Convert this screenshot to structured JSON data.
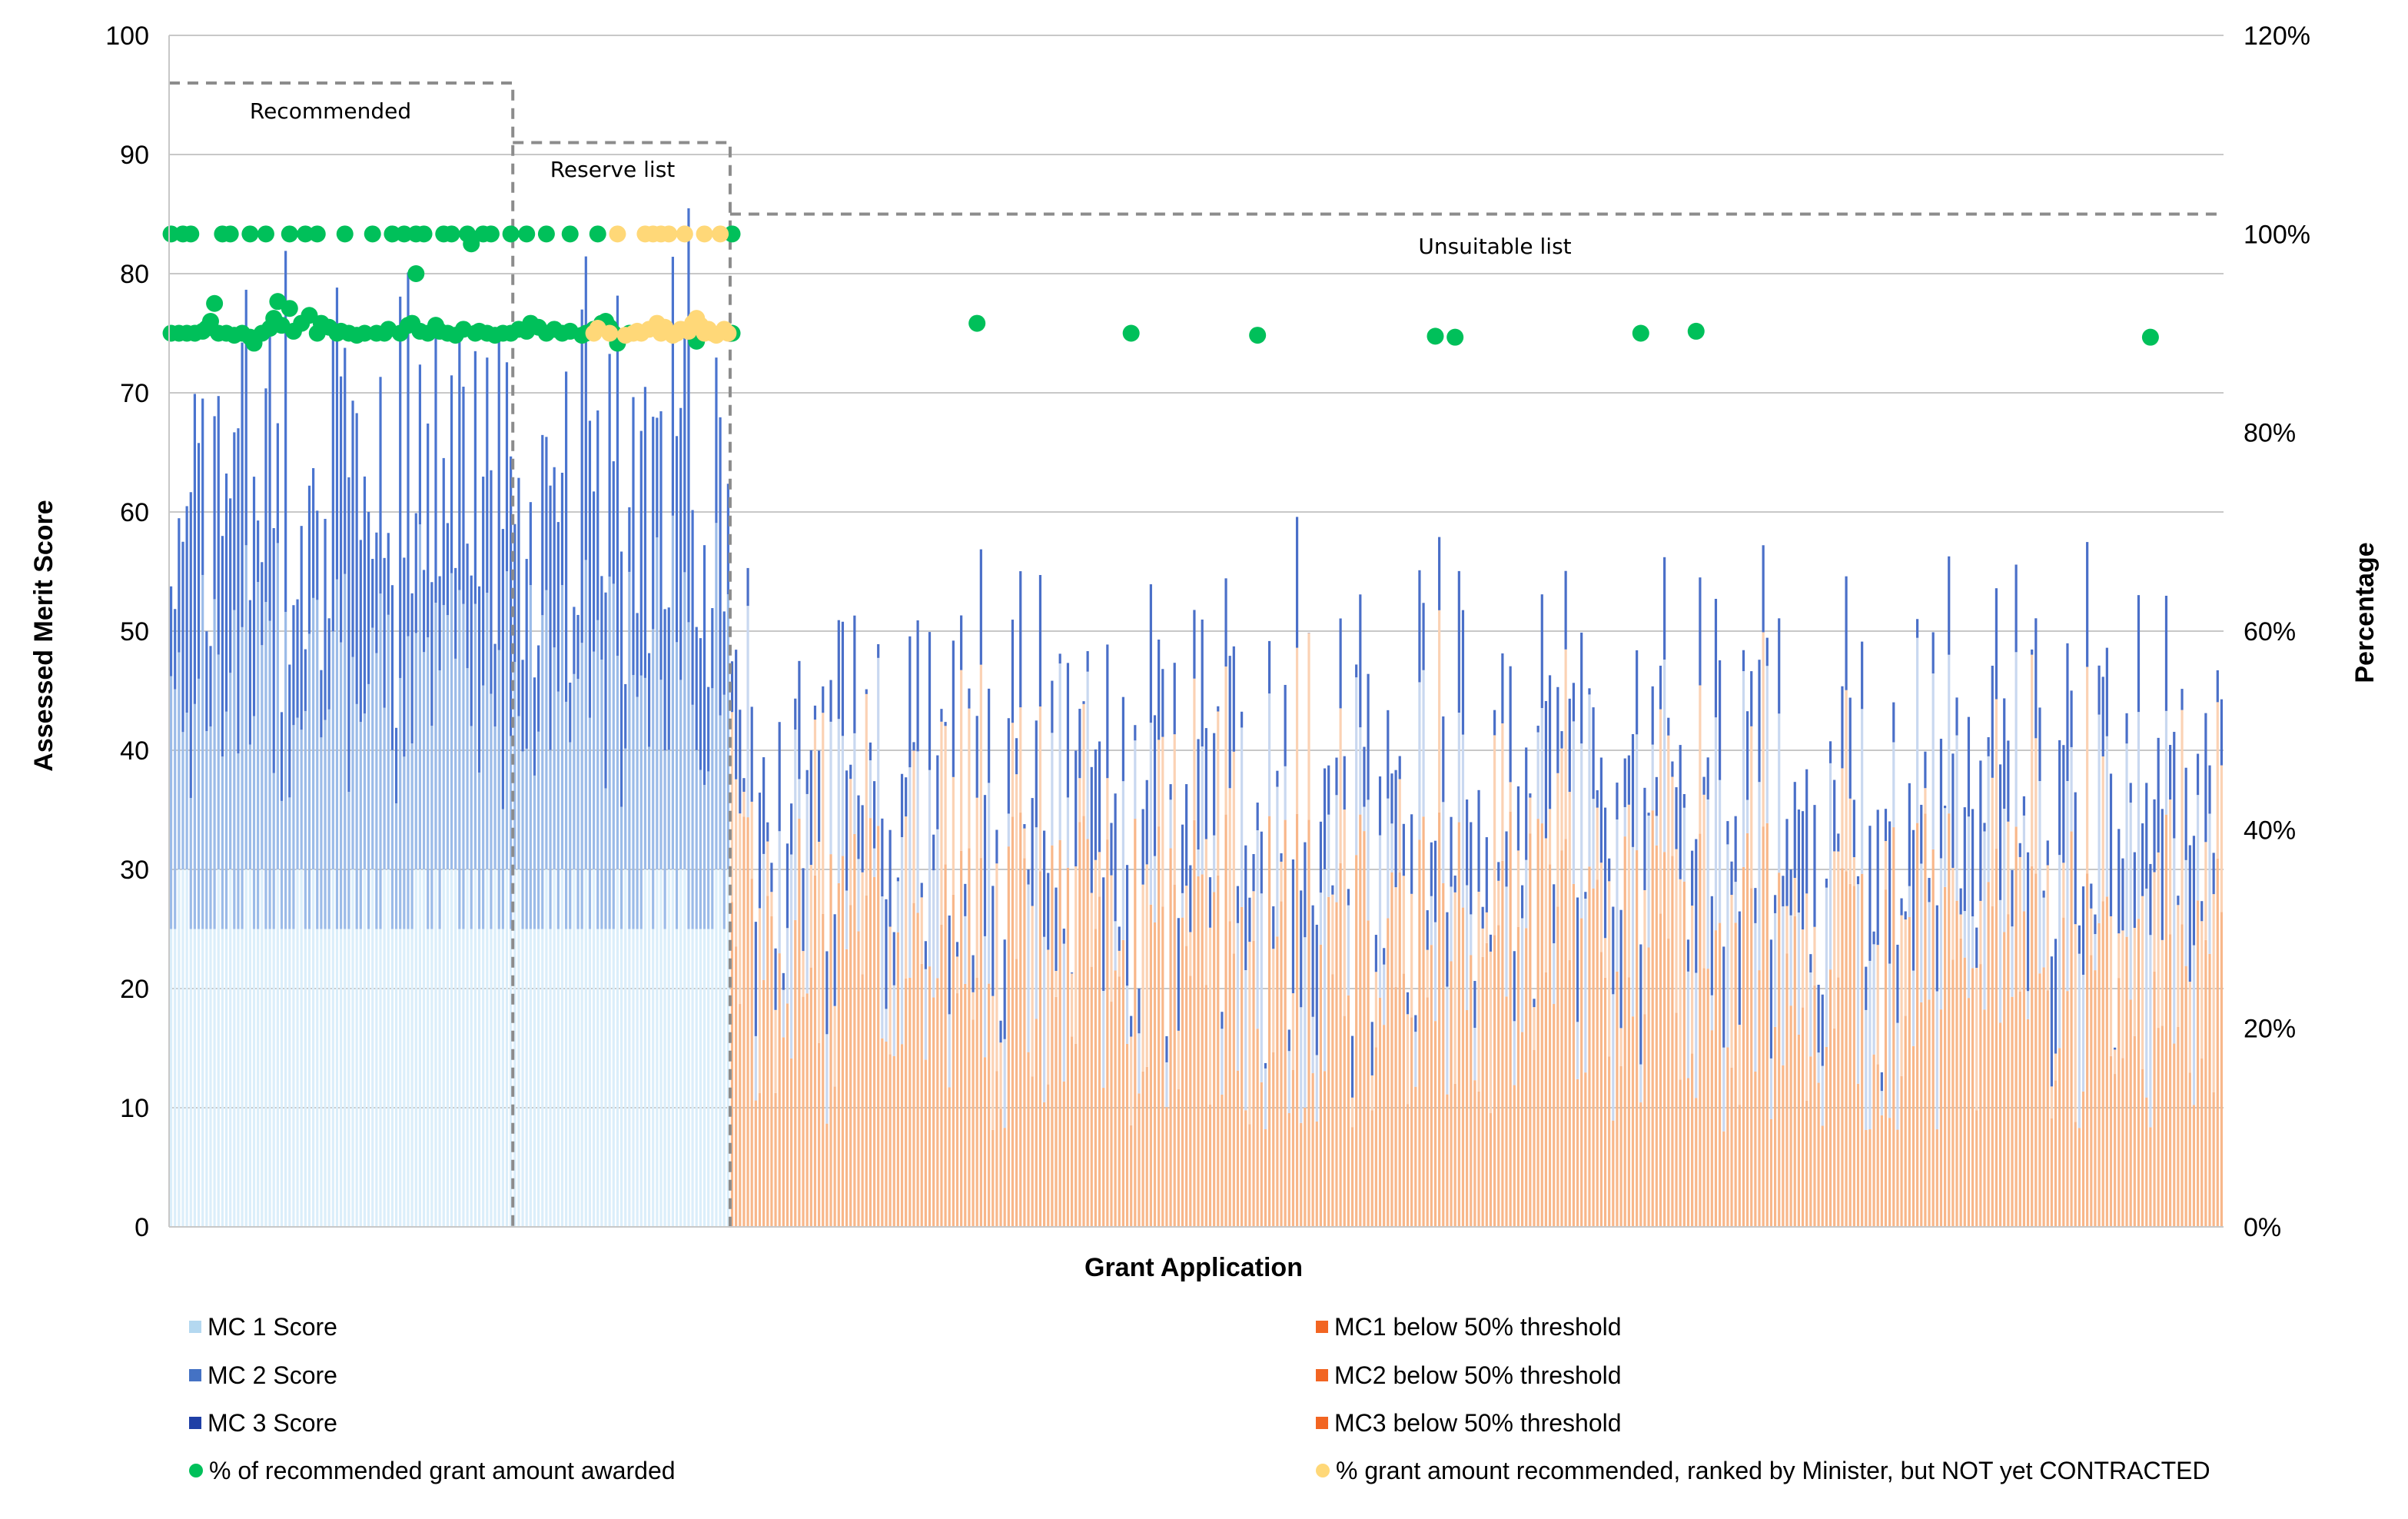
{
  "chart_data": {
    "type": "bar",
    "subtype": "stacked-bar-with-scatter",
    "xlabel": "Grant Application",
    "ylabel": "Assessed Merit Score",
    "y2label": "Percentage",
    "ylim": [
      0,
      100
    ],
    "y2lim": [
      0,
      1.2
    ],
    "yticks": [
      "0",
      "10",
      "20",
      "30",
      "40",
      "50",
      "60",
      "70",
      "80",
      "90",
      "100"
    ],
    "y2ticks": [
      "0%",
      "20%",
      "40%",
      "60%",
      "80%",
      "100%",
      "120%"
    ],
    "grid": true,
    "n_applications": 520,
    "regions": [
      {
        "name": "Recommended",
        "label": "Recommended",
        "x_start": 0,
        "x_end": 87,
        "level": 96
      },
      {
        "name": "Reserve list",
        "label": "Reserve list",
        "x_start": 87,
        "x_end": 142,
        "level": 91
      },
      {
        "name": "Unsuitable list",
        "label": "Unsuitable list",
        "x_start": 142,
        "x_end": 520,
        "level": 85
      }
    ],
    "bar_series_summary": [
      {
        "name": "MC 1 Score",
        "color": "#d7ecf8",
        "typical_range": [
          25,
          30
        ],
        "segment": "above-threshold"
      },
      {
        "name": "MC 2 Score",
        "color": "#5b8ad6",
        "typical_range": [
          15,
          30
        ],
        "segment": "above-threshold"
      },
      {
        "name": "MC 3 Score",
        "color": "#1f3fa6",
        "typical_range": [
          0,
          10
        ],
        "segment": "above-threshold"
      },
      {
        "name": "MC1 below 50% threshold",
        "color": "#f9b98a",
        "typical_range": [
          8,
          35
        ],
        "segment": "below-threshold"
      },
      {
        "name": "MC2 below 50% threshold",
        "color": "#f9b98a",
        "typical_range": [
          0,
          20
        ],
        "segment": "below-threshold"
      },
      {
        "name": "MC3 below 50% threshold",
        "color": "#f9b98a",
        "typical_range": [
          0,
          10
        ],
        "segment": "below-threshold"
      }
    ],
    "scatter_series": [
      {
        "name": "% of recommended grant amount awarded",
        "color": "#00c05a",
        "points": [
          {
            "x": 0,
            "y": 1.0
          },
          {
            "x": 3,
            "y": 1.0
          },
          {
            "x": 5,
            "y": 1.0
          },
          {
            "x": 13,
            "y": 1.0
          },
          {
            "x": 15,
            "y": 1.0
          },
          {
            "x": 20,
            "y": 1.0
          },
          {
            "x": 24,
            "y": 1.0
          },
          {
            "x": 30,
            "y": 1.0
          },
          {
            "x": 34,
            "y": 1.0
          },
          {
            "x": 37,
            "y": 1.0
          },
          {
            "x": 44,
            "y": 1.0
          },
          {
            "x": 51,
            "y": 1.0
          },
          {
            "x": 56,
            "y": 1.0
          },
          {
            "x": 59,
            "y": 1.0
          },
          {
            "x": 62,
            "y": 1.0
          },
          {
            "x": 64,
            "y": 1.0
          },
          {
            "x": 69,
            "y": 1.0
          },
          {
            "x": 71,
            "y": 1.0
          },
          {
            "x": 75,
            "y": 1.0
          },
          {
            "x": 79,
            "y": 1.0
          },
          {
            "x": 81,
            "y": 1.0
          },
          {
            "x": 86,
            "y": 1.0
          },
          {
            "x": 90,
            "y": 1.0
          },
          {
            "x": 95,
            "y": 1.0
          },
          {
            "x": 101,
            "y": 1.0
          },
          {
            "x": 108,
            "y": 1.0
          },
          {
            "x": 142,
            "y": 1.0
          },
          {
            "x": 76,
            "y": 0.99
          },
          {
            "x": 62,
            "y": 0.96
          },
          {
            "x": 11,
            "y": 0.93
          },
          {
            "x": 27,
            "y": 0.932
          },
          {
            "x": 30,
            "y": 0.925
          },
          {
            "x": 0,
            "y": 0.9
          },
          {
            "x": 2,
            "y": 0.9
          },
          {
            "x": 4,
            "y": 0.9
          },
          {
            "x": 6,
            "y": 0.9
          },
          {
            "x": 8,
            "y": 0.902
          },
          {
            "x": 9,
            "y": 0.905
          },
          {
            "x": 10,
            "y": 0.912
          },
          {
            "x": 12,
            "y": 0.9
          },
          {
            "x": 14,
            "y": 0.9
          },
          {
            "x": 16,
            "y": 0.898
          },
          {
            "x": 18,
            "y": 0.9
          },
          {
            "x": 20,
            "y": 0.896
          },
          {
            "x": 21,
            "y": 0.89
          },
          {
            "x": 23,
            "y": 0.9
          },
          {
            "x": 25,
            "y": 0.905
          },
          {
            "x": 26,
            "y": 0.915
          },
          {
            "x": 28,
            "y": 0.908
          },
          {
            "x": 31,
            "y": 0.902
          },
          {
            "x": 33,
            "y": 0.91
          },
          {
            "x": 35,
            "y": 0.918
          },
          {
            "x": 37,
            "y": 0.9
          },
          {
            "x": 38,
            "y": 0.91
          },
          {
            "x": 40,
            "y": 0.906
          },
          {
            "x": 42,
            "y": 0.9
          },
          {
            "x": 43,
            "y": 0.902
          },
          {
            "x": 45,
            "y": 0.9
          },
          {
            "x": 47,
            "y": 0.898
          },
          {
            "x": 49,
            "y": 0.9
          },
          {
            "x": 52,
            "y": 0.9
          },
          {
            "x": 54,
            "y": 0.9
          },
          {
            "x": 55,
            "y": 0.904
          },
          {
            "x": 58,
            "y": 0.9
          },
          {
            "x": 60,
            "y": 0.908
          },
          {
            "x": 61,
            "y": 0.91
          },
          {
            "x": 63,
            "y": 0.902
          },
          {
            "x": 65,
            "y": 0.9
          },
          {
            "x": 67,
            "y": 0.908
          },
          {
            "x": 68,
            "y": 0.902
          },
          {
            "x": 70,
            "y": 0.9
          },
          {
            "x": 72,
            "y": 0.898
          },
          {
            "x": 74,
            "y": 0.904
          },
          {
            "x": 77,
            "y": 0.9
          },
          {
            "x": 78,
            "y": 0.902
          },
          {
            "x": 80,
            "y": 0.9
          },
          {
            "x": 82,
            "y": 0.898
          },
          {
            "x": 84,
            "y": 0.9
          },
          {
            "x": 86,
            "y": 0.9
          },
          {
            "x": 88,
            "y": 0.904
          },
          {
            "x": 90,
            "y": 0.902
          },
          {
            "x": 91,
            "y": 0.91
          },
          {
            "x": 93,
            "y": 0.906
          },
          {
            "x": 95,
            "y": 0.9
          },
          {
            "x": 97,
            "y": 0.904
          },
          {
            "x": 99,
            "y": 0.9
          },
          {
            "x": 101,
            "y": 0.902
          },
          {
            "x": 104,
            "y": 0.898
          },
          {
            "x": 105,
            "y": 0.9
          },
          {
            "x": 107,
            "y": 0.904
          },
          {
            "x": 109,
            "y": 0.91
          },
          {
            "x": 110,
            "y": 0.912
          },
          {
            "x": 111,
            "y": 0.906
          },
          {
            "x": 112,
            "y": 0.9
          },
          {
            "x": 113,
            "y": 0.89
          },
          {
            "x": 116,
            "y": 0.9
          },
          {
            "x": 133,
            "y": 0.892
          },
          {
            "x": 142,
            "y": 0.9
          },
          {
            "x": 204,
            "y": 0.91
          },
          {
            "x": 243,
            "y": 0.9
          },
          {
            "x": 275,
            "y": 0.898
          },
          {
            "x": 320,
            "y": 0.897
          },
          {
            "x": 325,
            "y": 0.896
          },
          {
            "x": 372,
            "y": 0.9
          },
          {
            "x": 386,
            "y": 0.902
          },
          {
            "x": 501,
            "y": 0.896
          }
        ]
      },
      {
        "name": "% grant amount recommended, ranked by Minister, but NOT yet CONTRACTED",
        "color": "#ffd878",
        "points": [
          {
            "x": 113,
            "y": 1.0
          },
          {
            "x": 120,
            "y": 1.0
          },
          {
            "x": 122,
            "y": 1.0
          },
          {
            "x": 124,
            "y": 1.0
          },
          {
            "x": 126,
            "y": 1.0
          },
          {
            "x": 130,
            "y": 1.0
          },
          {
            "x": 135,
            "y": 1.0
          },
          {
            "x": 139,
            "y": 1.0
          },
          {
            "x": 107,
            "y": 0.9
          },
          {
            "x": 108,
            "y": 0.905
          },
          {
            "x": 111,
            "y": 0.9
          },
          {
            "x": 115,
            "y": 0.898
          },
          {
            "x": 117,
            "y": 0.9
          },
          {
            "x": 118,
            "y": 0.902
          },
          {
            "x": 119,
            "y": 0.9
          },
          {
            "x": 121,
            "y": 0.904
          },
          {
            "x": 123,
            "y": 0.91
          },
          {
            "x": 124,
            "y": 0.9
          },
          {
            "x": 125,
            "y": 0.906
          },
          {
            "x": 127,
            "y": 0.898
          },
          {
            "x": 128,
            "y": 0.9
          },
          {
            "x": 129,
            "y": 0.904
          },
          {
            "x": 131,
            "y": 0.902
          },
          {
            "x": 132,
            "y": 0.91
          },
          {
            "x": 133,
            "y": 0.915
          },
          {
            "x": 134,
            "y": 0.908
          },
          {
            "x": 135,
            "y": 0.9
          },
          {
            "x": 136,
            "y": 0.904
          },
          {
            "x": 137,
            "y": 0.9
          },
          {
            "x": 138,
            "y": 0.898
          },
          {
            "x": 140,
            "y": 0.904
          },
          {
            "x": 141,
            "y": 0.9
          }
        ]
      }
    ],
    "legend": {
      "placement": "bottom",
      "left": [
        {
          "label": "MC 1 Score",
          "color": "#b4d8f0",
          "marker": "square"
        },
        {
          "label": "MC 2 Score",
          "color": "#4472c4",
          "marker": "square"
        },
        {
          "label": "MC 3 Score",
          "color": "#1f3fa6",
          "marker": "square"
        },
        {
          "label": "% of recommended grant amount awarded",
          "color": "#00c05a",
          "marker": "circle"
        }
      ],
      "right": [
        {
          "label": "MC1 below 50% threshold",
          "color": "#f26522",
          "marker": "square"
        },
        {
          "label": "MC2 below 50% threshold",
          "color": "#f26522",
          "marker": "square"
        },
        {
          "label": "MC3 below 50% threshold",
          "color": "#f26522",
          "marker": "square"
        },
        {
          "label": "% grant amount recommended, ranked by Minister, but NOT yet CONTRACTED",
          "color": "#ffd878",
          "marker": "circle"
        }
      ]
    }
  }
}
